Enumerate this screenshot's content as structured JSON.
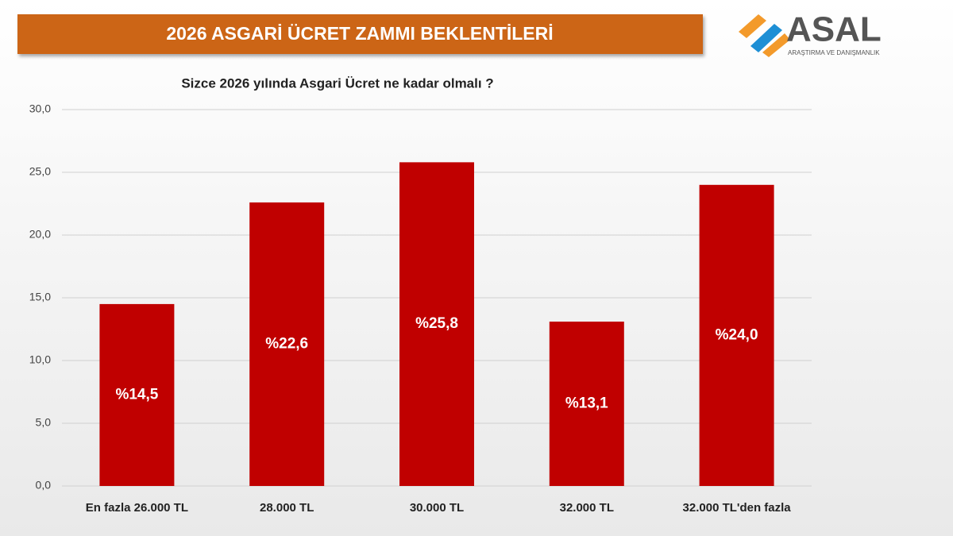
{
  "chart_data": {
    "type": "bar",
    "title": "2026 ASGARİ ÜCRET ZAMMI BEKLENTİLERİ",
    "subtitle": "Sizce 2026 yılında Asgari Ücret ne kadar olmalı ?",
    "logo_text": "ASAL",
    "logo_tagline": "ARAŞTIRMA VE DANIŞMANLIK",
    "categories": [
      "En fazla 26.000 TL",
      "28.000 TL",
      "30.000 TL",
      "32.000 TL",
      "32.000 TL'den fazla"
    ],
    "values": [
      14.5,
      22.6,
      25.8,
      13.1,
      24.0
    ],
    "value_labels": [
      "%14,5",
      "%22,6",
      "%25,8",
      "%13,1",
      "%24,0"
    ],
    "color": "#c00000",
    "ylim": [
      0,
      30
    ],
    "yticks": [
      {
        "value": 0,
        "label": "0,0"
      },
      {
        "value": 5,
        "label": "5,0"
      },
      {
        "value": 10,
        "label": "10,0"
      },
      {
        "value": 15,
        "label": "15,0"
      },
      {
        "value": 20,
        "label": "20,0"
      },
      {
        "value": 25,
        "label": "25,0"
      },
      {
        "value": 30,
        "label": "30,0"
      }
    ],
    "grid": true
  }
}
